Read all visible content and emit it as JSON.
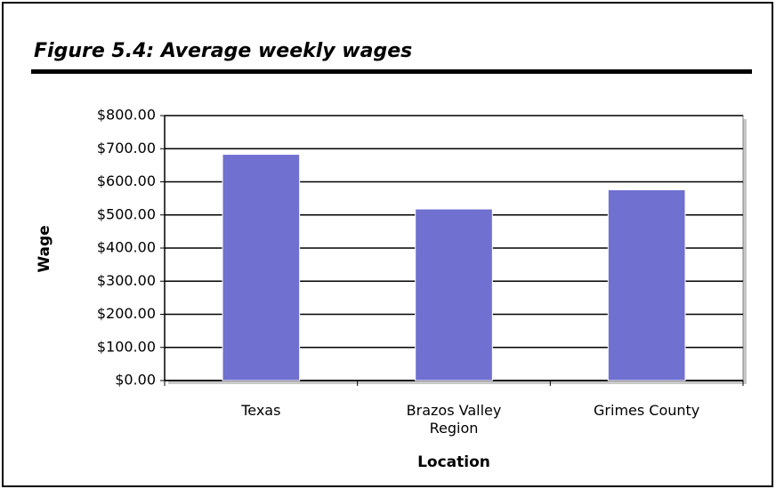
{
  "chart_data": {
    "type": "bar",
    "title": "Figure 5.4:  Average weekly wages",
    "x_label": "Location",
    "y_label": "Wage",
    "categories": [
      "Texas",
      "Brazos Valley Region",
      "Grimes County"
    ],
    "values": [
      683,
      518,
      576
    ],
    "color": "#7070d0",
    "ylim": [
      0,
      800
    ],
    "yticks": [
      {
        "value": 0,
        "label": "$0.00"
      },
      {
        "value": 100,
        "label": "$100.00"
      },
      {
        "value": 200,
        "label": "$200.00"
      },
      {
        "value": 300,
        "label": "$300.00"
      },
      {
        "value": 400,
        "label": "$400.00"
      },
      {
        "value": 500,
        "label": "$500.00"
      },
      {
        "value": 600,
        "label": "$600.00"
      },
      {
        "value": 700,
        "label": "$700.00"
      },
      {
        "value": 800,
        "label": "$800.00"
      }
    ],
    "grid": true
  }
}
